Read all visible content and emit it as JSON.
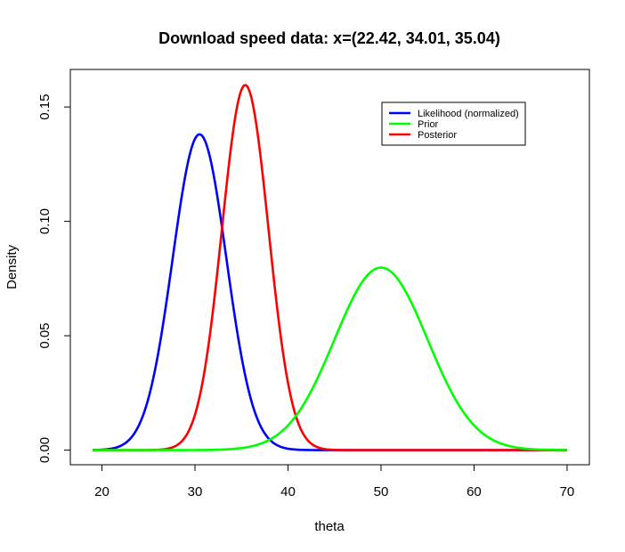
{
  "chart_data": {
    "type": "line",
    "title": "Download speed data: x=(22.42, 34.01, 35.04)",
    "xlabel": "theta",
    "ylabel": "Density",
    "xlim": [
      16.6,
      72.4
    ],
    "ylim": [
      -0.0064,
      0.1664
    ],
    "x_ticks": [
      20,
      30,
      40,
      50,
      60,
      70
    ],
    "x_tick_labels": [
      "20",
      "30",
      "40",
      "50",
      "60",
      "70"
    ],
    "y_ticks": [
      0,
      0.05,
      0.1,
      0.15
    ],
    "y_tick_labels": [
      "0.00",
      "0.05",
      "0.10",
      "0.15"
    ],
    "x_range": [
      19,
      70
    ],
    "legend_position": "top-right",
    "series": [
      {
        "name": "Likelihood (normalized)",
        "color": "#0000ff",
        "distribution": "normal",
        "mean": 30.49,
        "sd": 2.89
      },
      {
        "name": "Prior",
        "color": "#00ff00",
        "distribution": "normal",
        "mean": 50,
        "sd": 5
      },
      {
        "name": "Posterior",
        "color": "#ff0000",
        "distribution": "normal",
        "mean": 35.4,
        "sd": 2.5
      }
    ]
  }
}
